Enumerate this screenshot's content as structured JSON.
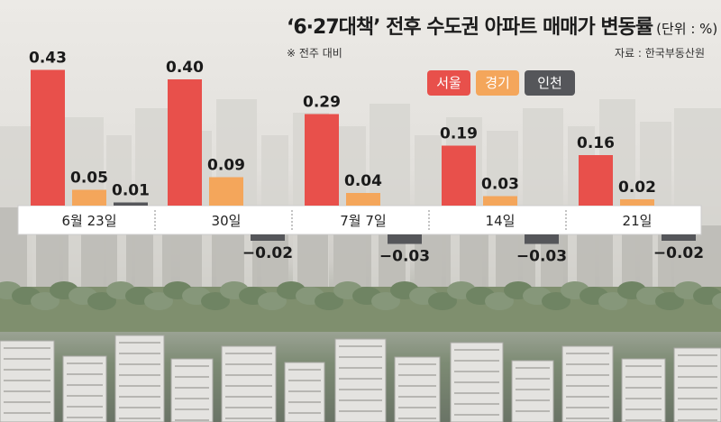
{
  "chart_data": {
    "type": "bar",
    "title": "‘6·27대책’ 전후 수도권 아파트 매매가 변동률",
    "unit": "(단위 : %)",
    "note": "※ 전주 대비",
    "source": "자료 : 한국부동산원",
    "categories": [
      "6월 23일",
      "30일",
      "7월 7일",
      "14일",
      "21일"
    ],
    "series": [
      {
        "name": "서울",
        "color": "#e8504b",
        "values": [
          0.43,
          0.4,
          0.29,
          0.19,
          0.16
        ],
        "labels": [
          "0.43",
          "0.40",
          "0.29",
          "0.19",
          "0.16"
        ]
      },
      {
        "name": "경기",
        "color": "#f4a65b",
        "values": [
          0.05,
          0.09,
          0.04,
          0.03,
          0.02
        ],
        "labels": [
          "0.05",
          "0.09",
          "0.04",
          "0.03",
          "0.02"
        ]
      },
      {
        "name": "인천",
        "color": "#55565a",
        "values": [
          0.01,
          -0.02,
          -0.03,
          -0.03,
          -0.02
        ],
        "labels": [
          "0.01",
          "−0.02",
          "−0.03",
          "−0.03",
          "−0.02"
        ]
      }
    ]
  }
}
